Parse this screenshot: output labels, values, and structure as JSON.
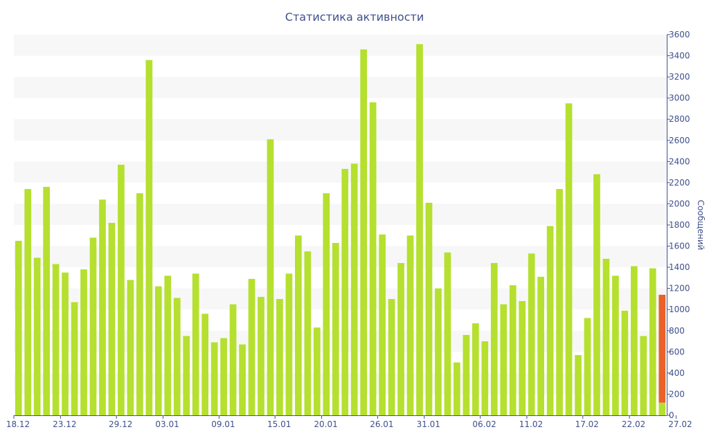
{
  "chart_data": {
    "type": "bar",
    "title": "Статистика активности",
    "ylabel": "Сообщений",
    "xlabel": "",
    "ylim": [
      0,
      3600
    ],
    "yticks": [
      0,
      200,
      400,
      600,
      800,
      1000,
      1200,
      1400,
      1600,
      1800,
      2000,
      2200,
      2400,
      2600,
      2800,
      3000,
      3200,
      3400,
      3600
    ],
    "y_axis_side": "right",
    "grid": "horizontal alternating bands",
    "x_ticks": [
      {
        "index": 0,
        "label": "18.12"
      },
      {
        "index": 5,
        "label": "23.12"
      },
      {
        "index": 11,
        "label": "29.12"
      },
      {
        "index": 16,
        "label": "03.01"
      },
      {
        "index": 22,
        "label": "09.01"
      },
      {
        "index": 28,
        "label": "15.01"
      },
      {
        "index": 33,
        "label": "20.01"
      },
      {
        "index": 39,
        "label": "26.01"
      },
      {
        "index": 44,
        "label": "31.01"
      },
      {
        "index": 50,
        "label": "06.02"
      },
      {
        "index": 55,
        "label": "11.02"
      },
      {
        "index": 61,
        "label": "17.02"
      },
      {
        "index": 66,
        "label": "22.02"
      },
      {
        "index": 71,
        "label": "27.02"
      }
    ],
    "colors": {
      "bar": "#b5e02f",
      "highlight": "#e8622a",
      "axis": "#3e4f8c",
      "band": "#f7f7f7"
    },
    "series": [
      {
        "values": [
          1650,
          2140,
          1490,
          2160,
          1430,
          1350,
          1070,
          1380,
          1680,
          2040,
          1820,
          2370,
          1280,
          2100,
          3360,
          1220,
          1320,
          1110,
          750,
          1340,
          960,
          690,
          730,
          1050,
          670,
          1290,
          1120,
          2610,
          1100,
          1340,
          1700,
          1550,
          830,
          2100,
          1630,
          2330,
          2380,
          3460,
          2960,
          1710,
          1100,
          1440,
          1700,
          3510,
          2010,
          1200,
          1540,
          500,
          760,
          870,
          700,
          1440,
          1050,
          1230,
          1080,
          1530,
          1310,
          1790,
          2140,
          2950,
          570,
          920,
          2280,
          1480,
          1320,
          990,
          1410,
          750,
          1390,
          120
        ]
      },
      {
        "values": [
          0,
          0,
          0,
          0,
          0,
          0,
          0,
          0,
          0,
          0,
          0,
          0,
          0,
          0,
          0,
          0,
          0,
          0,
          0,
          0,
          0,
          0,
          0,
          0,
          0,
          0,
          0,
          0,
          0,
          0,
          0,
          0,
          0,
          0,
          0,
          0,
          0,
          0,
          0,
          0,
          0,
          0,
          0,
          0,
          0,
          0,
          0,
          0,
          0,
          0,
          0,
          0,
          0,
          0,
          0,
          0,
          0,
          0,
          0,
          0,
          0,
          0,
          0,
          0,
          0,
          0,
          0,
          0,
          0,
          1020
        ]
      }
    ]
  }
}
